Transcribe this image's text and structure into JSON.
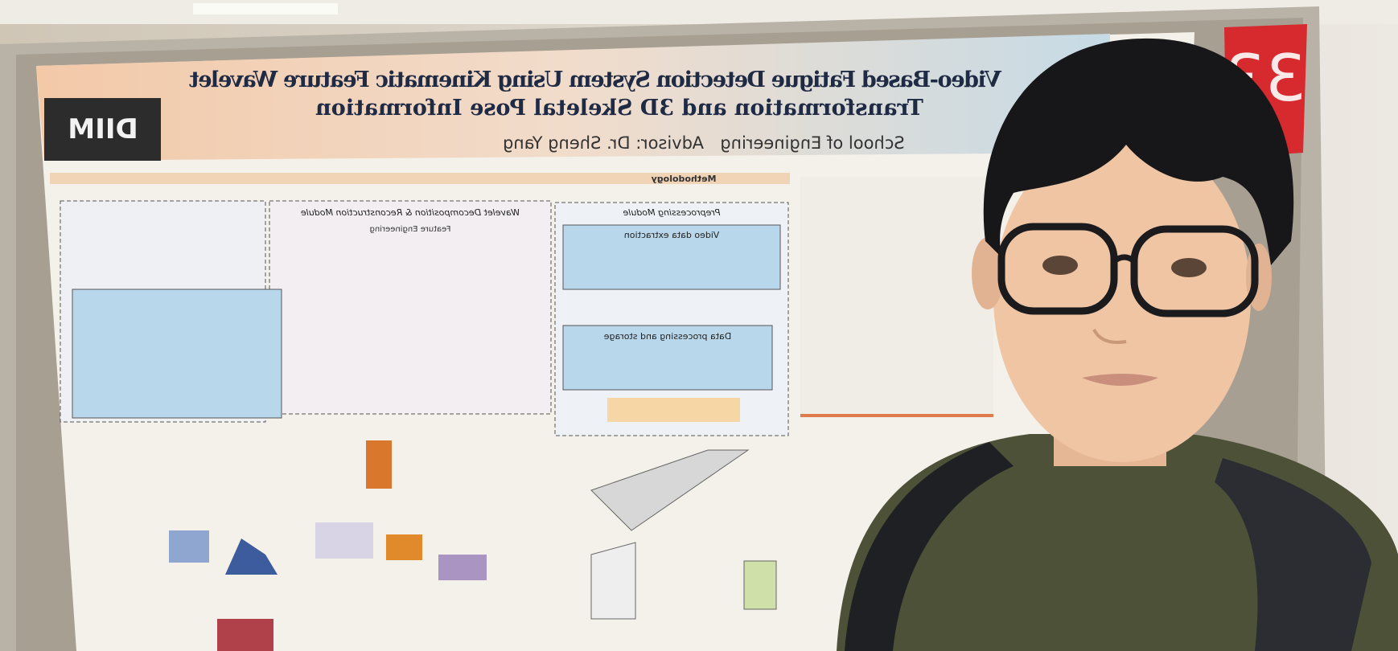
{
  "poster": {
    "title_line1": "Video-Based Fatigue Detection System Using Kinematic Feature Wavelet",
    "title_line2": "Transformation and 3D Skeletal Pose Information",
    "advisor": "Advisor: Dr. Sheng Yang",
    "school": "School of Engineering",
    "logo": "DIIM",
    "section": "Methodology",
    "modules": {
      "preprocessing": "Preprocessing Module",
      "wavelet": "Wavelet Decomposition & Reconstruction Module",
      "feature": "Feature Engineering",
      "video": "Video data extraction",
      "storage": "Data processing and storage"
    },
    "board_number": "33"
  }
}
